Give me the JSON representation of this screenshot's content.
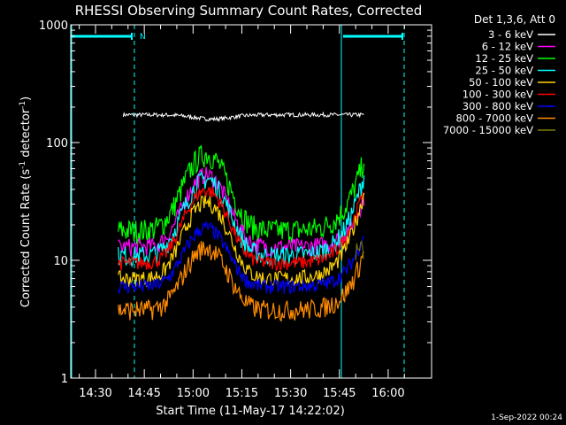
{
  "chart_data": {
    "type": "line",
    "title": "RHESSI Observing Summary Count Rates, Corrected",
    "xlabel": "Start Time (11-May-17 14:22:02)",
    "ylabel_main": "Corrected Count Rate (s",
    "ylabel_sup1": "-1",
    "ylabel_mid": " detector",
    "ylabel_sup2": "-1",
    "ylabel_end": ")",
    "y_scale": "log",
    "ylim": [
      1,
      1000
    ],
    "xlim_minutes": [
      14.0,
      60.0
    ],
    "x_tick_labels": [
      "14:30",
      "14:45",
      "15:00",
      "15:15",
      "15:30",
      "15:45",
      "16:00"
    ],
    "x_tick_minutes": [
      8,
      23,
      38,
      53,
      68,
      83,
      98
    ],
    "y_tick_labels": [
      "1",
      "10",
      "100",
      "1000"
    ],
    "y_tick_values": [
      1,
      10,
      100,
      1000
    ],
    "legend_header": "Det 1,3,6, Att 0",
    "legend_placement": "right",
    "series": [
      {
        "name": "3 - 6 keV",
        "color": "#ffffff"
      },
      {
        "name": "6 - 12 keV",
        "color": "#ff00ff"
      },
      {
        "name": "12 - 25 keV",
        "color": "#00ff00"
      },
      {
        "name": "25 - 50 keV",
        "color": "#00ffff"
      },
      {
        "name": "50 - 100 keV",
        "color": "#ffd400"
      },
      {
        "name": "100 - 300 keV",
        "color": "#ff0000"
      },
      {
        "name": "300 - 800 keV",
        "color": "#0000ff"
      },
      {
        "name": "800 - 7000 keV",
        "color": "#ff8c00"
      },
      {
        "name": "7000 - 15000 keV",
        "color": "#808000"
      }
    ],
    "night_marker": "N",
    "footer_date": "1-Sep-2022 00:24"
  }
}
